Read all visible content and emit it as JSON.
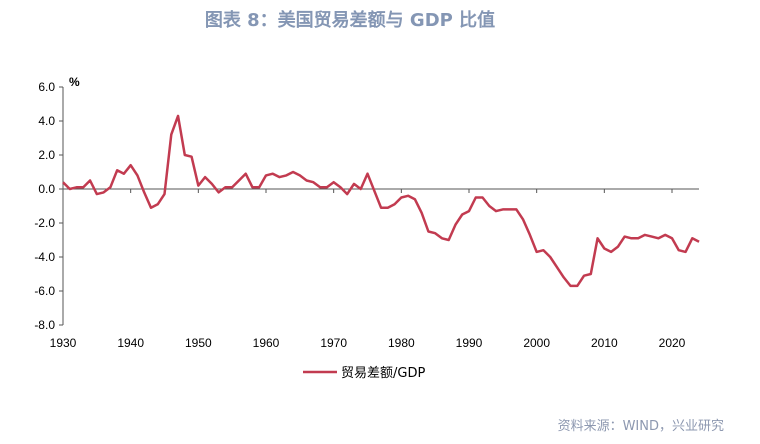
{
  "title": "图表 8：美国贸易差额与 GDP 比值",
  "source": "资料来源：WIND，兴业研究",
  "chart_data": {
    "type": "line",
    "ylabel": "%",
    "ylim": [
      -8,
      6
    ],
    "xlim": [
      1930,
      2024
    ],
    "yticks": [
      "6.0",
      "4.0",
      "2.0",
      "0.0",
      "-2.0",
      "-4.0",
      "-6.0",
      "-8.0"
    ],
    "xticks": [
      "1930",
      "1940",
      "1950",
      "1960",
      "1970",
      "1980",
      "1990",
      "2000",
      "2010",
      "2020"
    ],
    "grid": false,
    "legend_position": "bottom",
    "colors": {
      "line": "#c23b50",
      "title": "#8496b4"
    },
    "x_start": 1930,
    "series": [
      {
        "name": "贸易差额/GDP",
        "values": [
          0.4,
          0,
          0.1,
          0.1,
          0.5,
          -0.3,
          -0.2,
          0.1,
          1.1,
          0.9,
          1.4,
          0.8,
          -0.2,
          -1.1,
          -0.9,
          -0.3,
          3.2,
          4.3,
          2.0,
          1.9,
          0.2,
          0.7,
          0.3,
          -0.2,
          0.1,
          0.1,
          0.5,
          0.9,
          0.1,
          0.1,
          0.8,
          0.9,
          0.7,
          0.8,
          1.0,
          0.8,
          0.5,
          0.4,
          0.1,
          0.1,
          0.4,
          0.1,
          -0.3,
          0.3,
          0,
          0.9,
          -0.1,
          -1.1,
          -1.1,
          -0.9,
          -0.5,
          -0.4,
          -0.6,
          -1.4,
          -2.5,
          -2.6,
          -2.9,
          -3.0,
          -2.1,
          -1.5,
          -1.3,
          -0.5,
          -0.5,
          -1.0,
          -1.3,
          -1.2,
          -1.2,
          -1.2,
          -1.8,
          -2.7,
          -3.7,
          -3.6,
          -4.0,
          -4.6,
          -5.2,
          -5.7,
          -5.7,
          -5.1,
          -5.0,
          -2.9,
          -3.5,
          -3.7,
          -3.4,
          -2.8,
          -2.9,
          -2.9,
          -2.7,
          -2.8,
          -2.9,
          -2.7,
          -2.9,
          -3.6,
          -3.7,
          -2.9,
          -3.1
        ]
      }
    ]
  }
}
